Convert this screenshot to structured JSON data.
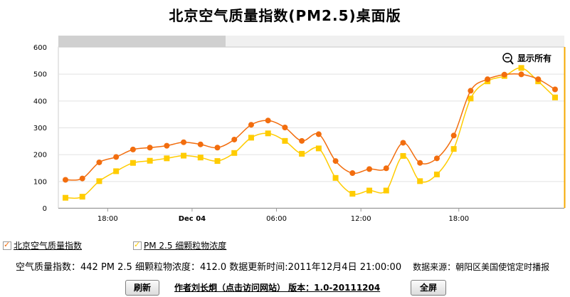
{
  "header": {
    "title": "北京空气质量指数(PM2.5)桌面版"
  },
  "chart_data": {
    "type": "line",
    "x_ticks": [
      "18:00",
      "Dec 04",
      "06:00",
      "12:00",
      "18:00"
    ],
    "y_ticks": [
      "0",
      "100",
      "200",
      "300",
      "400",
      "500",
      "600"
    ],
    "ylim": [
      0,
      600
    ],
    "zoom_reset_label": "显示所有",
    "series": [
      {
        "name": "北京空气质量指数",
        "color": "#f26d0e",
        "values": [
          105,
          110,
          170,
          190,
          218,
          225,
          232,
          245,
          237,
          225,
          255,
          310,
          326,
          300,
          250,
          275,
          175,
          130,
          145,
          148,
          243,
          168,
          185,
          270,
          437,
          480,
          497,
          498,
          480,
          442
        ]
      },
      {
        "name": "PM 2.5 细颗粒物浓度",
        "color": "#ffcc00",
        "values": [
          38,
          42,
          100,
          137,
          168,
          176,
          185,
          195,
          188,
          175,
          205,
          262,
          278,
          250,
          202,
          222,
          112,
          53,
          65,
          65,
          194,
          100,
          125,
          220,
          408,
          472,
          492,
          522,
          472,
          412
        ]
      }
    ]
  },
  "legend": {
    "aqi_label": "北京空气质量指数",
    "pm25_label": "PM 2.5 细颗粒物浓度"
  },
  "status": {
    "text": "空气质量指数：442 PM 2.5 细颗粒物浓度：412.0 数据更新时间:2011年12月4日 21:00:00",
    "source": "数据来源：朝阳区美国使馆定时播报"
  },
  "footer": {
    "refresh_label": "刷新",
    "author_label": "作者刘长炯（点击访问网站） 版本：1.0-20111204",
    "fullscreen_label": "全屏"
  }
}
